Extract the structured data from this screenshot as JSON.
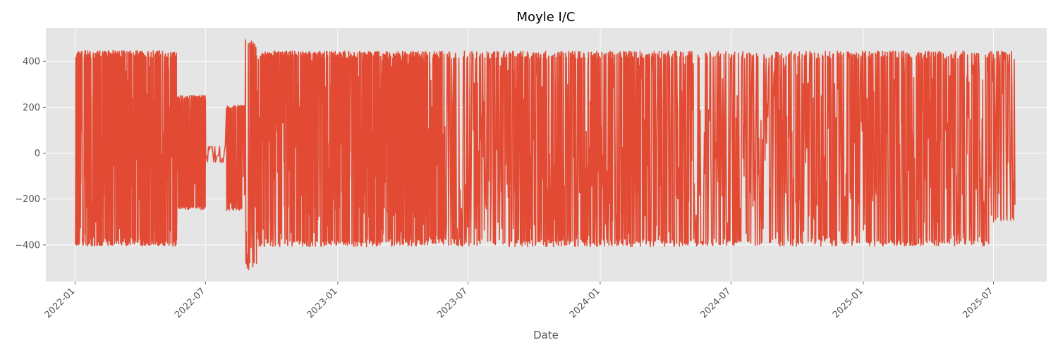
{
  "chart_data": {
    "type": "line",
    "title": "Moyle I/C",
    "xlabel": "Date",
    "ylabel": "",
    "colors": {
      "series": "#e24a33",
      "plot_background": "#e5e5e5",
      "grid": "#ffffff"
    },
    "grid": true,
    "legend": "none",
    "xlim": [
      "2021-11-21",
      "2025-09-13"
    ],
    "ylim": [
      -560,
      545
    ],
    "x_ticks": [
      "2022-01",
      "2022-07",
      "2023-01",
      "2023-07",
      "2024-01",
      "2024-07",
      "2025-01",
      "2025-07"
    ],
    "y_ticks": [
      -400,
      -200,
      0,
      200,
      400
    ],
    "y_tick_labels": [
      "−400",
      "−200",
      "0",
      "200",
      "400"
    ],
    "series": [
      {
        "x_start": "2022-01-01",
        "x_end": "2025-07-31",
        "segments": [
          {
            "from": "2022-01-01",
            "to": "2022-05-22",
            "min": -405,
            "max": 448,
            "switches_per_month": 110
          },
          {
            "from": "2022-05-22",
            "to": "2022-07-01",
            "min": -245,
            "max": 252,
            "switches_per_month": 150
          },
          {
            "from": "2022-07-01",
            "to": "2022-07-30",
            "min": -40,
            "max": 30,
            "switches_per_month": 20
          },
          {
            "from": "2022-07-30",
            "to": "2022-08-25",
            "min": -250,
            "max": 210,
            "switches_per_month": 90
          },
          {
            "from": "2022-08-25",
            "to": "2022-09-10",
            "min": -510,
            "max": 495,
            "switches_per_month": 60
          },
          {
            "from": "2022-09-10",
            "to": "2023-02-26",
            "min": -408,
            "max": 445,
            "switches_per_month": 120
          },
          {
            "from": "2023-02-26",
            "to": "2023-05-25",
            "min": -405,
            "max": 445,
            "switches_per_month": 110
          },
          {
            "from": "2023-05-25",
            "to": "2023-08-25",
            "min": -405,
            "max": 445,
            "switches_per_month": 50
          },
          {
            "from": "2023-08-25",
            "to": "2024-05-10",
            "min": -408,
            "max": 445,
            "switches_per_month": 70
          },
          {
            "from": "2024-05-10",
            "to": "2024-09-05",
            "min": -405,
            "max": 445,
            "switches_per_month": 40
          },
          {
            "from": "2024-09-05",
            "to": "2025-06-25",
            "min": -405,
            "max": 445,
            "switches_per_month": 60
          },
          {
            "from": "2025-06-25",
            "to": "2025-07-31",
            "min": -300,
            "max": 445,
            "switches_per_month": 45
          }
        ]
      }
    ]
  }
}
